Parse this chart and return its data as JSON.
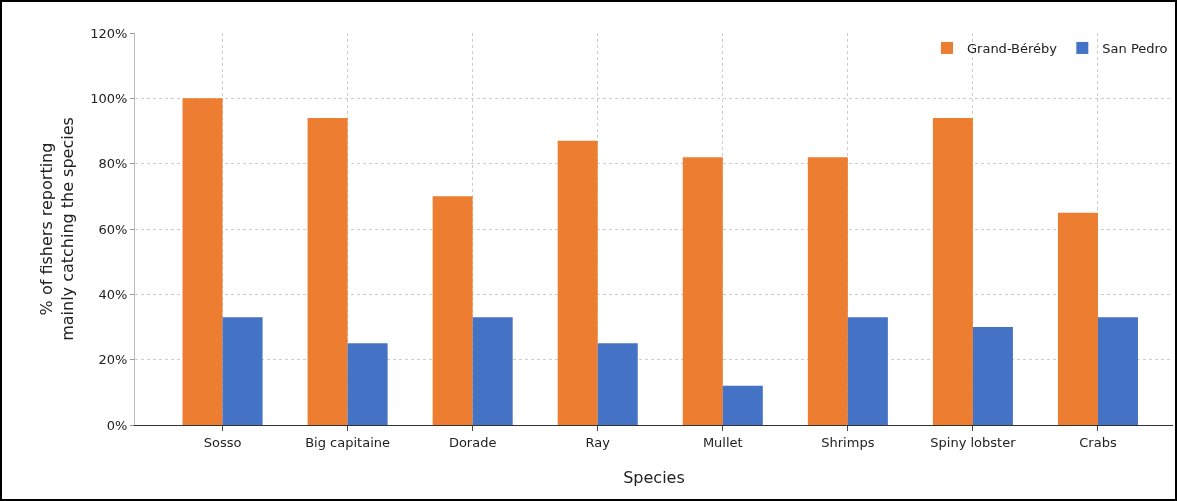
{
  "chart_data": {
    "type": "bar",
    "xlabel": "Species",
    "ylabel": "% of fishers reporting\nmainly catching the species",
    "categories": [
      "Sosso",
      "Big capitaine",
      "Dorade",
      "Ray",
      "Mullet",
      "Shrimps",
      "Spiny lobster",
      "Crabs"
    ],
    "series": [
      {
        "name": "Grand-Béréby",
        "color": "#ed7d31",
        "values": [
          100,
          94,
          70,
          87,
          82,
          82,
          94,
          65
        ]
      },
      {
        "name": "San Pedro",
        "color": "#4472c4",
        "values": [
          33,
          25,
          33,
          25,
          12,
          33,
          30,
          33
        ]
      }
    ],
    "ylim": [
      0,
      120
    ],
    "yticks": [
      {
        "value": 0,
        "label": "0%"
      },
      {
        "value": 20,
        "label": "20%"
      },
      {
        "value": 40,
        "label": "40%"
      },
      {
        "value": 60,
        "label": "60%"
      },
      {
        "value": 80,
        "label": "80%"
      },
      {
        "value": 100,
        "label": "100%"
      },
      {
        "value": 120,
        "label": "120%"
      }
    ],
    "grid": true,
    "legend": "top right"
  }
}
